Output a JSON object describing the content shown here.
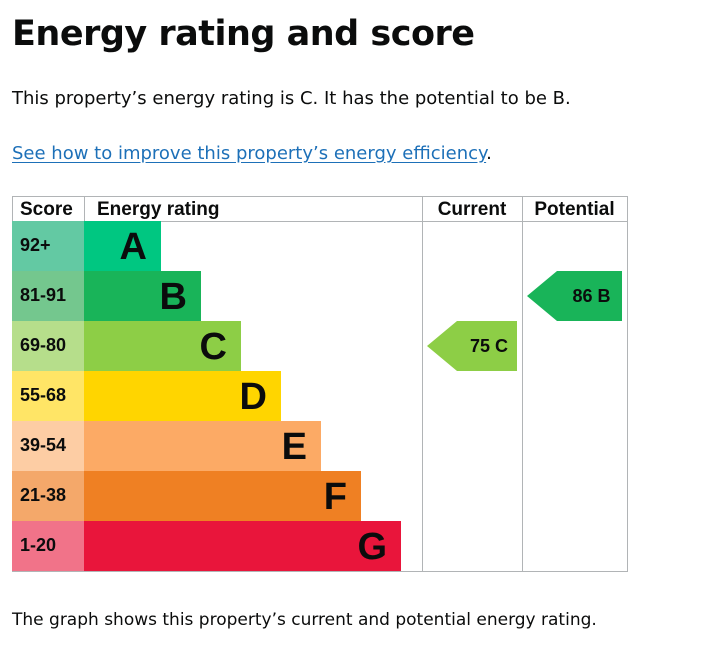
{
  "heading": "Energy rating and score",
  "intro": "This property’s energy rating is C. It has the potential to be B.",
  "link": {
    "text": "See how to improve this property’s energy efficiency",
    "suffix": "."
  },
  "outro": "The graph shows this property’s current and potential energy rating.",
  "chart_data": {
    "type": "bar",
    "title": "",
    "headers": {
      "score": "Score",
      "rating": "Energy rating",
      "current": "Current",
      "potential": "Potential"
    },
    "bands": [
      {
        "letter": "A",
        "range": "92+",
        "color": "#00c781",
        "light": "#63c9a3"
      },
      {
        "letter": "B",
        "range": "81-91",
        "color": "#19b459",
        "light": "#74c78e"
      },
      {
        "letter": "C",
        "range": "69-80",
        "color": "#8dce46",
        "light": "#b6de8b"
      },
      {
        "letter": "D",
        "range": "55-68",
        "color": "#ffd500",
        "light": "#ffe566"
      },
      {
        "letter": "E",
        "range": "39-54",
        "color": "#fcaa65",
        "light": "#fdcda4"
      },
      {
        "letter": "F",
        "range": "21-38",
        "color": "#ef8023",
        "light": "#f4a86a"
      },
      {
        "letter": "G",
        "range": "1-20",
        "color": "#e9153b",
        "light": "#f17389"
      }
    ],
    "current": {
      "score": 75,
      "letter": "C"
    },
    "potential": {
      "score": 86,
      "letter": "B"
    }
  }
}
